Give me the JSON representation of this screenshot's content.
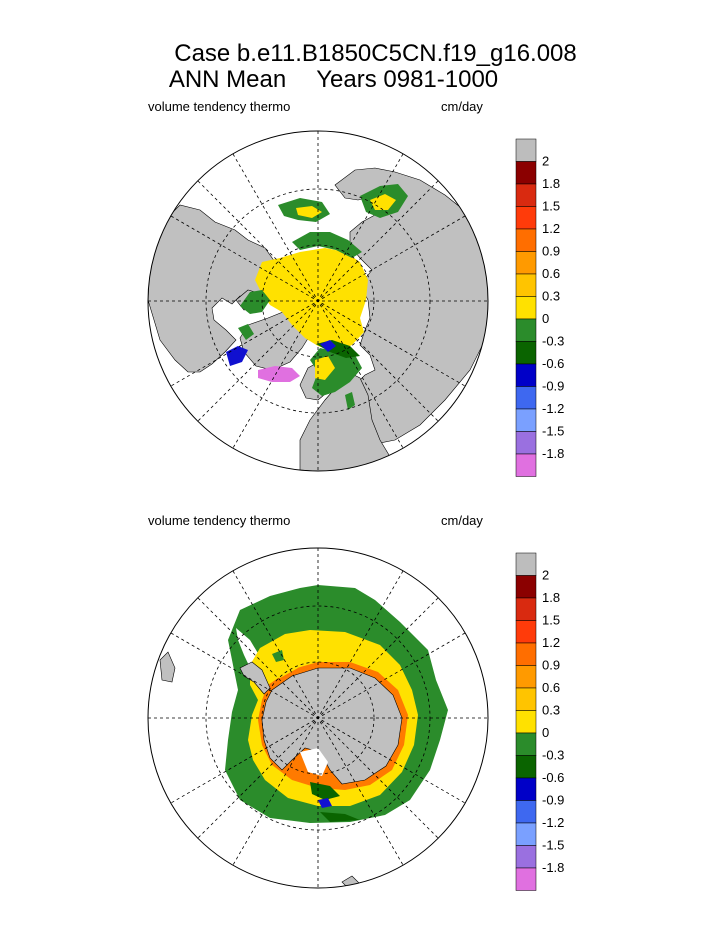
{
  "header": {
    "case_line": "Case b.e11.B1850C5CN.f19_g16.008",
    "period_label": "ANN Mean",
    "years_label": "Years 0981-1000"
  },
  "colors": {
    "land": "#c0c0c0",
    "ocean_open": "#ffffff",
    "yellow": "#ffe100",
    "green": "#2b8c2b",
    "dark_green": "#0a6400",
    "blue": "#1010d0",
    "violet": "#e070e0"
  },
  "chart_data": [
    {
      "type": "map",
      "projection": "polar-stereographic",
      "hemisphere": "north",
      "title_left": "volume tendency thermo",
      "title_right": "cm/day",
      "legend": {
        "labels": [
          "2",
          "1.8",
          "1.5",
          "1.2",
          "0.9",
          "0.6",
          "0.3",
          "0",
          "-0.3",
          "-0.6",
          "-0.9",
          "-1.2",
          "-1.5",
          "-1.8"
        ],
        "colors": [
          "#bdbdbd",
          "#8b0000",
          "#d92a10",
          "#ff3b0a",
          "#ff6e00",
          "#ff9a00",
          "#ffc400",
          "#ffe100",
          "#2b8c2b",
          "#0a6400",
          "#0000c8",
          "#3e68f0",
          "#7aa0ff",
          "#9a70e0",
          "#e070e0"
        ]
      }
    },
    {
      "type": "map",
      "projection": "polar-stereographic",
      "hemisphere": "south",
      "title_left": "volume tendency thermo",
      "title_right": "cm/day",
      "legend": {
        "labels": [
          "2",
          "1.8",
          "1.5",
          "1.2",
          "0.9",
          "0.6",
          "0.3",
          "0",
          "-0.3",
          "-0.6",
          "-0.9",
          "-1.2",
          "-1.5",
          "-1.8"
        ],
        "colors": [
          "#bdbdbd",
          "#8b0000",
          "#d92a10",
          "#ff3b0a",
          "#ff6e00",
          "#ff9a00",
          "#ffc400",
          "#ffe100",
          "#2b8c2b",
          "#0a6400",
          "#0000c8",
          "#3e68f0",
          "#7aa0ff",
          "#9a70e0",
          "#e070e0"
        ]
      }
    }
  ]
}
